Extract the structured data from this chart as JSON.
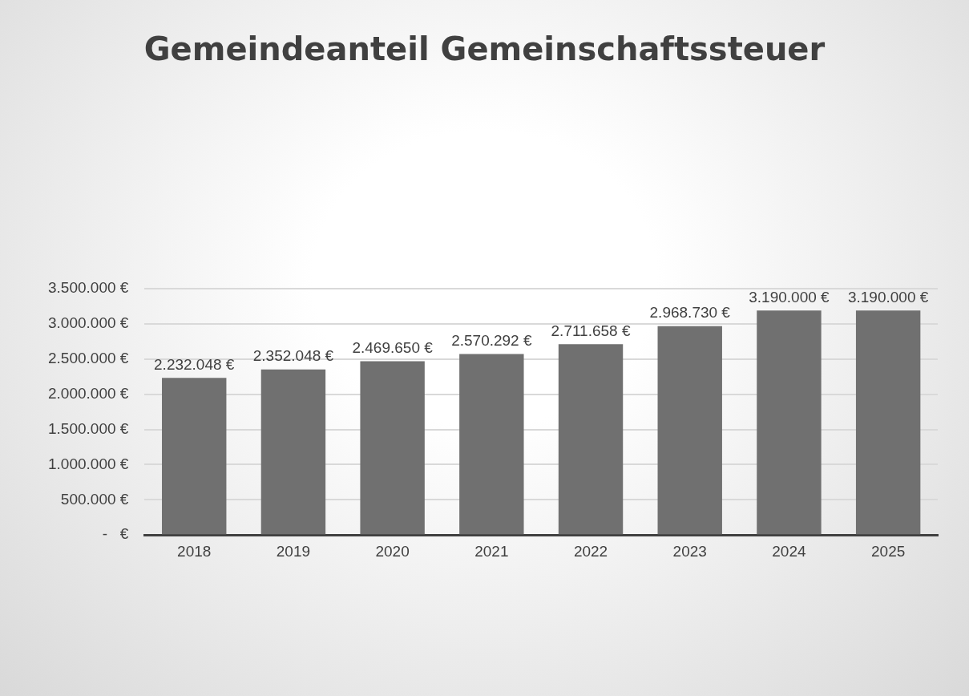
{
  "chart_data": {
    "type": "bar",
    "title": "Gemeindeanteil Gemeinschaftssteuer",
    "categories": [
      "2018",
      "2019",
      "2020",
      "2021",
      "2022",
      "2023",
      "2024",
      "2025"
    ],
    "values": [
      2232048,
      2352048,
      2469650,
      2570292,
      2711658,
      2968730,
      3190000,
      3190000
    ],
    "value_labels": [
      "2.232.048 €",
      "2.352.048 €",
      "2.469.650 €",
      "2.570.292 €",
      "2.711.658 €",
      "2.968.730 €",
      "3.190.000 €",
      "3.190.000 €"
    ],
    "color": "#707070",
    "ylim": [
      0,
      3500000
    ],
    "yticks": [
      {
        "value": 0,
        "label": "-   €"
      },
      {
        "value": 500000,
        "label": "500.000 €"
      },
      {
        "value": 1000000,
        "label": "1.000.000 €"
      },
      {
        "value": 1500000,
        "label": "1.500.000 €"
      },
      {
        "value": 2000000,
        "label": "2.000.000 €"
      },
      {
        "value": 2500000,
        "label": "2.500.000 €"
      },
      {
        "value": 3000000,
        "label": "3.000.000 €"
      },
      {
        "value": 3500000,
        "label": "3.500.000 €"
      }
    ],
    "grid": "y"
  }
}
